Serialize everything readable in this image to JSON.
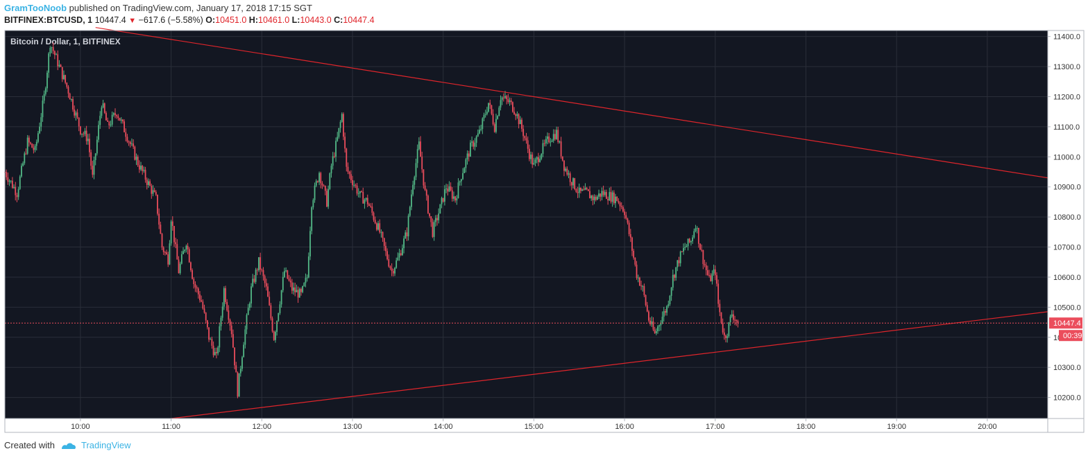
{
  "header": {
    "author": "GramTooNoob",
    "published_text": "published on TradingView.com, January 17, 2018 17:15 SGT",
    "symbol": "BITFINEX:BTCUSD, 1",
    "last": "10447.4",
    "change": "−617.6 (−5.58%)",
    "o_label": "O:",
    "o_value": "10451.0",
    "h_label": "H:",
    "h_value": "10461.0",
    "l_label": "L:",
    "l_value": "10443.0",
    "c_label": "C:",
    "c_value": "10447.4"
  },
  "footer": {
    "created_with": "Created with",
    "brand": "TradingView"
  },
  "colors": {
    "background": "#131722",
    "grid": "#2a2e39",
    "up": "#53b987",
    "down": "#eb4d5c",
    "trendline": "#e0252b",
    "axis_text": "#333333",
    "price_label_bg": "#eb4d5c"
  },
  "chart_data": {
    "type": "candlestick",
    "title": "Bitcoin / Dollar, 1, BITFINEX",
    "x_ticks": [
      "10:00",
      "11:00",
      "12:00",
      "13:00",
      "14:00",
      "15:00",
      "16:00",
      "17:00",
      "18:00",
      "19:00",
      "20:00"
    ],
    "y_ticks": [
      "10200.0",
      "10300.0",
      "10400.0",
      "10500.0",
      "10600.0",
      "10700.0",
      "10800.0",
      "10900.0",
      "11000.0",
      "11100.0",
      "11200.0",
      "11300.0",
      "11400.0"
    ],
    "x_range": [
      "09:10",
      "20:40"
    ],
    "y_range": [
      10130,
      11420
    ],
    "last_price": "10447.4",
    "countdown": "00:39",
    "price_path": [
      [
        "09:10",
        10950
      ],
      [
        "09:18",
        10880
      ],
      [
        "09:25",
        11050
      ],
      [
        "09:30",
        11020
      ],
      [
        "09:36",
        11200
      ],
      [
        "09:40",
        11380
      ],
      [
        "09:46",
        11300
      ],
      [
        "09:52",
        11220
      ],
      [
        "10:00",
        11090
      ],
      [
        "10:05",
        11060
      ],
      [
        "10:08",
        10930
      ],
      [
        "10:14",
        11180
      ],
      [
        "10:18",
        11100
      ],
      [
        "10:24",
        11150
      ],
      [
        "10:30",
        11080
      ],
      [
        "10:38",
        10980
      ],
      [
        "10:44",
        10920
      ],
      [
        "10:50",
        10860
      ],
      [
        "10:54",
        10700
      ],
      [
        "10:58",
        10660
      ],
      [
        "11:00",
        10800
      ],
      [
        "11:05",
        10620
      ],
      [
        "11:10",
        10720
      ],
      [
        "11:15",
        10580
      ],
      [
        "11:20",
        10520
      ],
      [
        "11:25",
        10400
      ],
      [
        "11:30",
        10330
      ],
      [
        "11:35",
        10560
      ],
      [
        "11:40",
        10420
      ],
      [
        "11:44",
        10220
      ],
      [
        "11:48",
        10390
      ],
      [
        "11:53",
        10560
      ],
      [
        "11:58",
        10650
      ],
      [
        "12:03",
        10560
      ],
      [
        "12:08",
        10400
      ],
      [
        "12:10",
        10460
      ],
      [
        "12:15",
        10620
      ],
      [
        "12:20",
        10560
      ],
      [
        "12:26",
        10540
      ],
      [
        "12:30",
        10600
      ],
      [
        "12:33",
        10850
      ],
      [
        "12:38",
        10950
      ],
      [
        "12:43",
        10850
      ],
      [
        "12:46",
        10970
      ],
      [
        "12:50",
        11060
      ],
      [
        "12:53",
        11140
      ],
      [
        "12:56",
        10960
      ],
      [
        "13:00",
        10920
      ],
      [
        "13:05",
        10870
      ],
      [
        "13:10",
        10850
      ],
      [
        "13:14",
        10800
      ],
      [
        "13:18",
        10750
      ],
      [
        "13:22",
        10680
      ],
      [
        "13:26",
        10620
      ],
      [
        "13:30",
        10660
      ],
      [
        "13:36",
        10750
      ],
      [
        "13:40",
        10920
      ],
      [
        "13:44",
        11040
      ],
      [
        "13:48",
        10880
      ],
      [
        "13:53",
        10750
      ],
      [
        "13:58",
        10830
      ],
      [
        "14:02",
        10900
      ],
      [
        "14:08",
        10860
      ],
      [
        "14:12",
        10940
      ],
      [
        "14:18",
        11030
      ],
      [
        "14:24",
        11080
      ],
      [
        "14:30",
        11180
      ],
      [
        "14:34",
        11100
      ],
      [
        "14:38",
        11200
      ],
      [
        "14:44",
        11180
      ],
      [
        "14:48",
        11150
      ],
      [
        "14:53",
        11080
      ],
      [
        "14:57",
        11010
      ],
      [
        "15:00",
        10970
      ],
      [
        "15:05",
        11020
      ],
      [
        "15:10",
        11060
      ],
      [
        "15:15",
        11080
      ],
      [
        "15:20",
        10970
      ],
      [
        "15:25",
        10920
      ],
      [
        "15:30",
        10880
      ],
      [
        "15:35",
        10880
      ],
      [
        "15:40",
        10860
      ],
      [
        "15:45",
        10880
      ],
      [
        "15:50",
        10870
      ],
      [
        "15:55",
        10860
      ],
      [
        "16:00",
        10820
      ],
      [
        "16:04",
        10720
      ],
      [
        "16:08",
        10610
      ],
      [
        "16:12",
        10560
      ],
      [
        "16:16",
        10460
      ],
      [
        "16:20",
        10410
      ],
      [
        "16:24",
        10460
      ],
      [
        "16:28",
        10500
      ],
      [
        "16:32",
        10600
      ],
      [
        "16:36",
        10660
      ],
      [
        "16:40",
        10700
      ],
      [
        "16:44",
        10720
      ],
      [
        "16:47",
        10780
      ],
      [
        "16:50",
        10700
      ],
      [
        "16:53",
        10640
      ],
      [
        "16:56",
        10590
      ],
      [
        "17:00",
        10620
      ],
      [
        "17:02",
        10510
      ],
      [
        "17:06",
        10400
      ],
      [
        "17:08",
        10420
      ],
      [
        "17:11",
        10480
      ],
      [
        "17:15",
        10447
      ]
    ],
    "trendlines": [
      {
        "name": "upper",
        "from": [
          "10:10",
          11430
        ],
        "to": [
          "20:40",
          10930
        ]
      },
      {
        "name": "lower",
        "from": [
          "11:00",
          10130
        ],
        "to": [
          "20:40",
          10485
        ]
      }
    ]
  }
}
